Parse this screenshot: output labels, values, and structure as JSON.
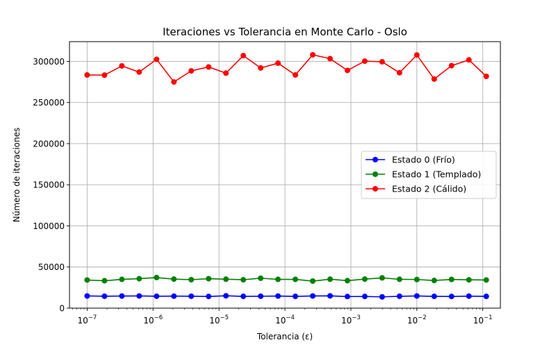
{
  "chart_data": {
    "type": "line",
    "title": "Iteraciones vs Tolerancia en Monte Carlo - Oslo",
    "xlabel": "Tolerancia (ε)",
    "ylabel": "Número de iteraciones",
    "xscale": "log",
    "xlim": [
      5.4e-08,
      0.185
    ],
    "ylim": [
      0,
      324000
    ],
    "grid": true,
    "legend_position": "center-right",
    "xticks": [
      {
        "value": 1e-07,
        "base": "10",
        "exp": "−7"
      },
      {
        "value": 1e-06,
        "base": "10",
        "exp": "−6"
      },
      {
        "value": 1e-05,
        "base": "10",
        "exp": "−5"
      },
      {
        "value": 0.0001,
        "base": "10",
        "exp": "−4"
      },
      {
        "value": 0.001,
        "base": "10",
        "exp": "−3"
      },
      {
        "value": 0.01,
        "base": "10",
        "exp": "−2"
      },
      {
        "value": 0.1,
        "base": "10",
        "exp": "−1"
      }
    ],
    "yticks": [
      {
        "value": 0,
        "label": "0"
      },
      {
        "value": 50000,
        "label": "50000"
      },
      {
        "value": 100000,
        "label": "100000"
      },
      {
        "value": 150000,
        "label": "150000"
      },
      {
        "value": 200000,
        "label": "200000"
      },
      {
        "value": 250000,
        "label": "250000"
      },
      {
        "value": 300000,
        "label": "300000"
      }
    ],
    "x": [
      1e-07,
      1.833e-07,
      3.36e-07,
      6.158e-07,
      1.129e-06,
      2.069e-06,
      3.793e-06,
      6.952e-06,
      1.274e-05,
      2.336e-05,
      4.281e-05,
      7.848e-05,
      0.0001438,
      0.0002637,
      0.0004833,
      0.0008859,
      0.001624,
      0.002976,
      0.005456,
      0.01,
      0.01833,
      0.0336,
      0.06158,
      0.1129
    ],
    "series": [
      {
        "name": "Estado 0 (Frío)",
        "color": "#0000ff",
        "values": [
          14800,
          14500,
          14700,
          14800,
          14500,
          14600,
          14500,
          14200,
          15000,
          14300,
          14500,
          14700,
          14300,
          14800,
          14900,
          14100,
          14200,
          13700,
          14400,
          14800,
          14300,
          14200,
          14600,
          14300
        ]
      },
      {
        "name": "Estado 1 (Templado)",
        "color": "#008000",
        "values": [
          34200,
          33300,
          35000,
          35800,
          37200,
          35300,
          34600,
          35800,
          35200,
          34500,
          36400,
          35000,
          35000,
          32900,
          35200,
          33400,
          35300,
          36800,
          35100,
          34800,
          33600,
          34900,
          34400,
          34200
        ]
      },
      {
        "name": "Estado 2 (Cálido)",
        "color": "#ff0000",
        "values": [
          283500,
          283300,
          294500,
          287000,
          302500,
          275000,
          288500,
          293200,
          285700,
          307000,
          292000,
          297800,
          283500,
          308000,
          303300,
          289000,
          300300,
          299500,
          286200,
          307800,
          278500,
          294800,
          301800,
          281800
        ]
      }
    ]
  },
  "colors": {
    "grid": "#b0b0b0",
    "axes": "#000000"
  }
}
